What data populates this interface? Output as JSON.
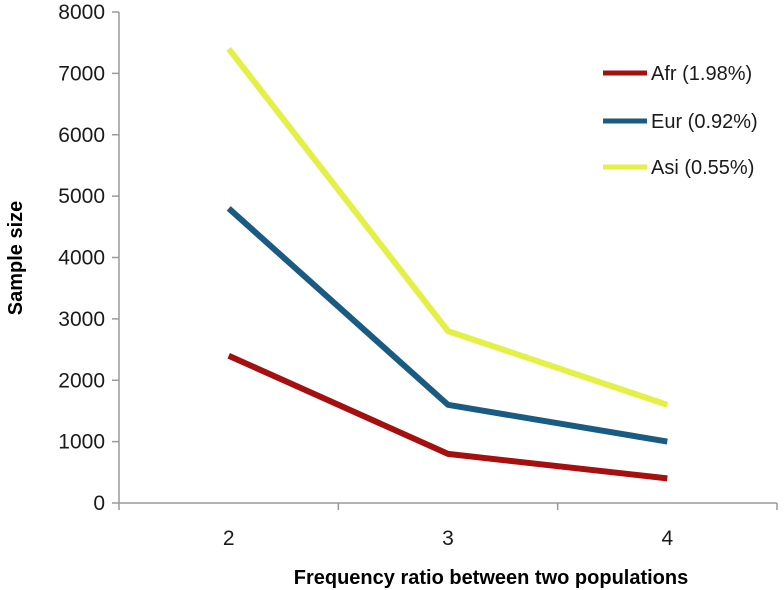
{
  "chart_data": {
    "type": "line",
    "x": [
      "2",
      "3",
      "4"
    ],
    "xlabel": "Frequency ratio between two populations",
    "ylabel": "Sample size",
    "ylim": [
      0,
      8000
    ],
    "yticks": [
      "0",
      "1000",
      "2000",
      "3000",
      "4000",
      "5000",
      "6000",
      "7000",
      "8000"
    ],
    "grid": false,
    "legend_position": "top-right",
    "series": [
      {
        "name": "Afr (1.98%)",
        "values": [
          2400,
          800,
          400
        ],
        "color": "#a50f0f"
      },
      {
        "name": "Eur (0.92%)",
        "values": [
          4800,
          1600,
          1000
        ],
        "color": "#1a5b83"
      },
      {
        "name": "Asi (0.55%)",
        "values": [
          7400,
          2800,
          1600
        ],
        "color": "#e4f046"
      }
    ]
  }
}
